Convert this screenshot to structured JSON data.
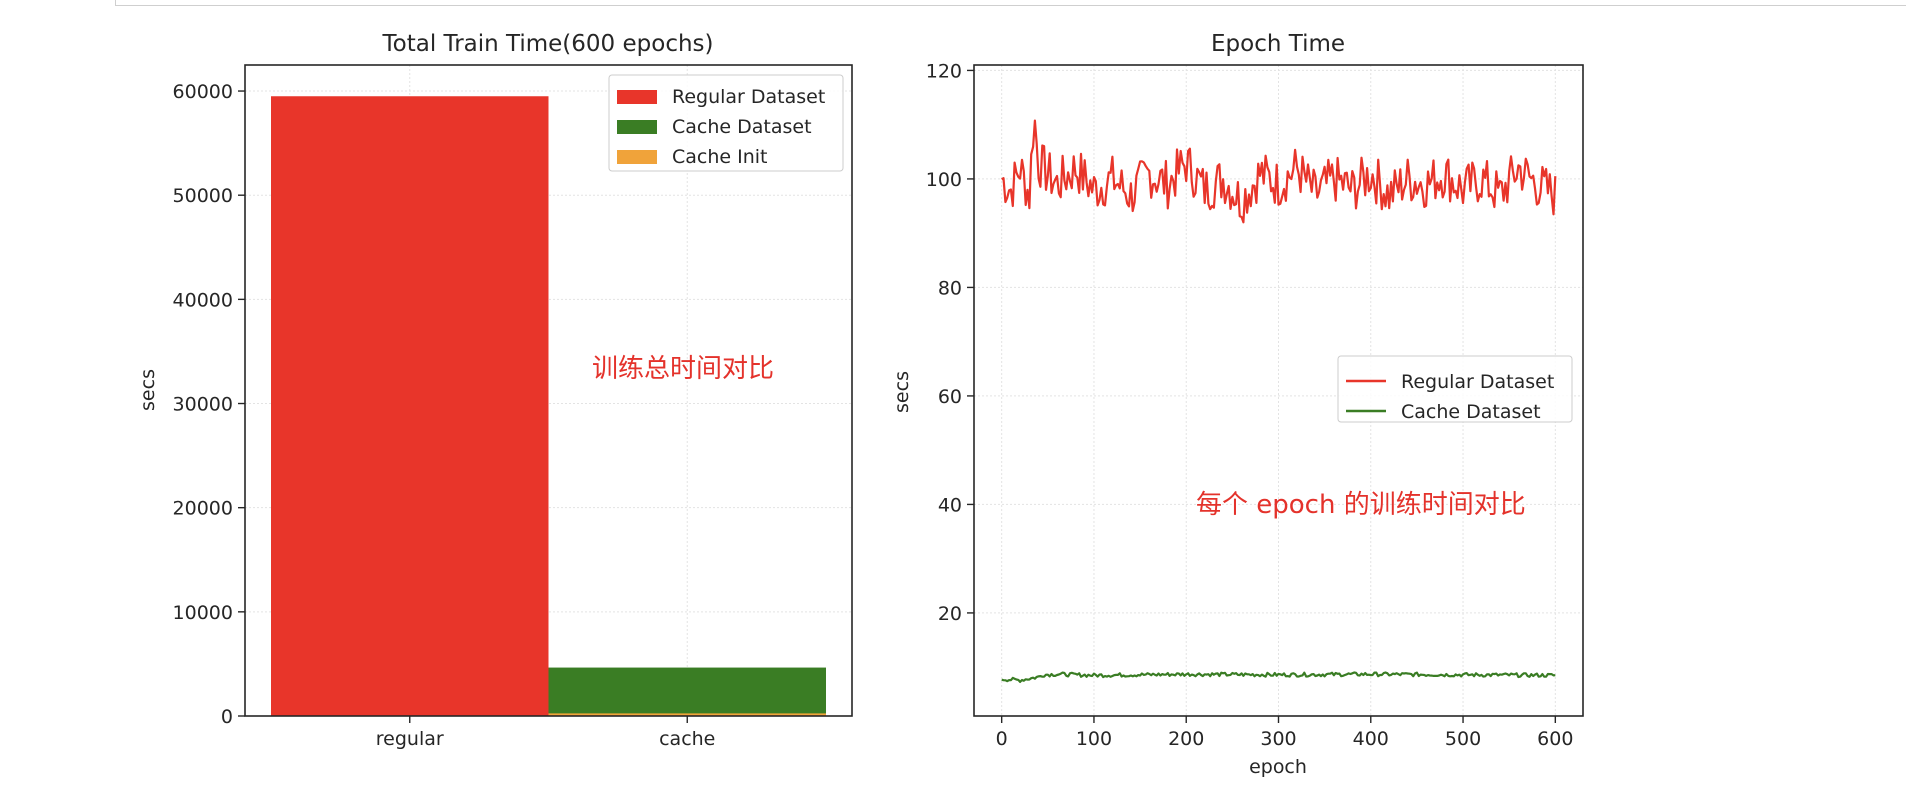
{
  "chart_data": [
    {
      "type": "bar",
      "title": "Total Train Time(600 epochs)",
      "xlabel": "",
      "ylabel": "secs",
      "categories": [
        "regular",
        "cache"
      ],
      "ylim": [
        0,
        62500
      ],
      "yticks": [
        0,
        10000,
        20000,
        30000,
        40000,
        50000,
        60000
      ],
      "series": [
        {
          "name": "Regular Dataset",
          "color": "#e8352a",
          "values": [
            59500,
            0
          ]
        },
        {
          "name": "Cache Dataset",
          "color": "#3a7d24",
          "values": [
            0,
            4650
          ]
        },
        {
          "name": "Cache Init",
          "color": "#f0a33a",
          "values": [
            0,
            250
          ]
        }
      ],
      "stacked": true,
      "legend": "top-right",
      "grid": true,
      "annotation": "训练总时间对比"
    },
    {
      "type": "line",
      "title": "Epoch Time",
      "xlabel": "epoch",
      "ylabel": "secs",
      "xlim": [
        -30,
        630
      ],
      "ylim": [
        1,
        121
      ],
      "xticks": [
        0,
        100,
        200,
        300,
        400,
        500,
        600
      ],
      "yticks": [
        20,
        40,
        60,
        80,
        100,
        120
      ],
      "series": [
        {
          "name": "Regular Dataset",
          "color": "#e8352a",
          "x": [
            0,
            10,
            20,
            30,
            35,
            40,
            50,
            60,
            80,
            100,
            120,
            140,
            160,
            180,
            200,
            220,
            240,
            260,
            280,
            300,
            320,
            340,
            360,
            380,
            400,
            420,
            440,
            460,
            480,
            500,
            520,
            540,
            560,
            580,
            600
          ],
          "values": [
            100,
            98,
            102,
            97,
            112,
            103,
            101,
            99,
            102,
            98,
            100,
            97,
            101,
            99,
            103,
            98,
            100,
            96,
            101,
            99,
            102,
            97,
            100,
            98,
            101,
            97,
            100,
            99,
            101,
            98,
            100,
            97,
            102,
            99,
            97
          ]
        },
        {
          "name": "Cache Dataset",
          "color": "#3a7d24",
          "x": [
            0,
            20,
            40,
            45,
            60,
            100,
            200,
            300,
            400,
            500,
            600
          ],
          "values": [
            7.8,
            7.6,
            8.2,
            8.6,
            8.7,
            8.5,
            8.7,
            8.6,
            8.7,
            8.6,
            8.5
          ]
        }
      ],
      "legend": "center-right",
      "grid": true,
      "annotation": "每个 epoch 的训练时间对比"
    }
  ]
}
